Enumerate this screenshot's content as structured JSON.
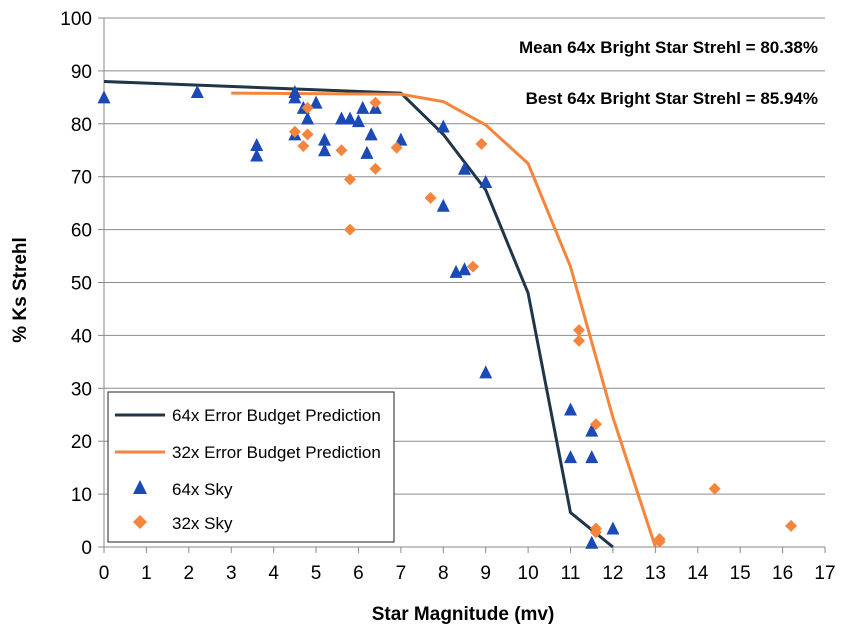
{
  "chart_data": {
    "type": "scatter",
    "xlabel": "Star Magnitude (mv)",
    "ylabel": "% Ks Strehl",
    "xlim": [
      0,
      17
    ],
    "ylim": [
      0,
      100
    ],
    "xticks": [
      "0",
      "1",
      "2",
      "3",
      "4",
      "5",
      "6",
      "7",
      "8",
      "9",
      "10",
      "11",
      "12",
      "13",
      "14",
      "15",
      "16",
      "17"
    ],
    "yticks": [
      "0",
      "10",
      "20",
      "30",
      "40",
      "50",
      "60",
      "70",
      "80",
      "90",
      "100"
    ],
    "grid": "horizontal",
    "legend_position": "bottom-left",
    "annotations": [
      "Mean 64x Bright Star Strehl = 80.38%",
      "Best 64x Bright Star Strehl = 85.94%"
    ],
    "series": [
      {
        "name": "64x Error Budget Prediction",
        "kind": "line",
        "color": "#1f3548",
        "points": [
          [
            0,
            88
          ],
          [
            7,
            85.8
          ],
          [
            8,
            78
          ],
          [
            9,
            67.5
          ],
          [
            10,
            48
          ],
          [
            11,
            6.5
          ],
          [
            12,
            0
          ]
        ]
      },
      {
        "name": "32x Error Budget Prediction",
        "kind": "line",
        "color": "#f5853c",
        "points": [
          [
            3,
            85.8
          ],
          [
            7,
            85.6
          ],
          [
            8,
            84.2
          ],
          [
            9,
            79.8
          ],
          [
            10,
            72.5
          ],
          [
            11,
            53
          ],
          [
            12,
            24.5
          ],
          [
            13,
            0
          ]
        ]
      },
      {
        "name": "64x Sky",
        "kind": "triangle",
        "color": "#1b49b6",
        "points": [
          [
            0,
            85
          ],
          [
            2.2,
            86
          ],
          [
            3.6,
            76
          ],
          [
            3.6,
            74
          ],
          [
            4.5,
            86
          ],
          [
            4.5,
            85
          ],
          [
            4.5,
            78
          ],
          [
            4.7,
            83
          ],
          [
            4.8,
            81
          ],
          [
            5,
            84
          ],
          [
            5.2,
            77
          ],
          [
            5.2,
            75
          ],
          [
            5.6,
            81
          ],
          [
            5.8,
            81
          ],
          [
            6,
            80.5
          ],
          [
            6.1,
            83
          ],
          [
            6.2,
            74.5
          ],
          [
            6.3,
            78
          ],
          [
            6.4,
            83
          ],
          [
            7,
            77
          ],
          [
            8,
            79.5
          ],
          [
            8,
            64.5
          ],
          [
            8.3,
            52
          ],
          [
            8.5,
            71.5
          ],
          [
            8.5,
            52.5
          ],
          [
            9,
            69
          ],
          [
            9,
            33
          ],
          [
            11,
            26
          ],
          [
            11,
            17
          ],
          [
            11.5,
            22
          ],
          [
            11.5,
            17
          ],
          [
            11.5,
            0.8
          ],
          [
            12,
            3.5
          ]
        ]
      },
      {
        "name": "32x Sky",
        "kind": "diamond",
        "color": "#f5853c",
        "points": [
          [
            4.5,
            78.5
          ],
          [
            4.7,
            75.8
          ],
          [
            4.8,
            83
          ],
          [
            4.8,
            78
          ],
          [
            5.6,
            75
          ],
          [
            5.8,
            69.5
          ],
          [
            5.8,
            60
          ],
          [
            6.4,
            84
          ],
          [
            6.4,
            71.5
          ],
          [
            6.9,
            75.5
          ],
          [
            7.7,
            66
          ],
          [
            8.7,
            53
          ],
          [
            8.9,
            76.2
          ],
          [
            11.2,
            41
          ],
          [
            11.2,
            39
          ],
          [
            11.6,
            23.2
          ],
          [
            11.6,
            3.5
          ],
          [
            11.6,
            2.8
          ],
          [
            13.1,
            1.5
          ],
          [
            13.1,
            1
          ],
          [
            14.4,
            11
          ],
          [
            16.2,
            4
          ]
        ]
      }
    ]
  }
}
